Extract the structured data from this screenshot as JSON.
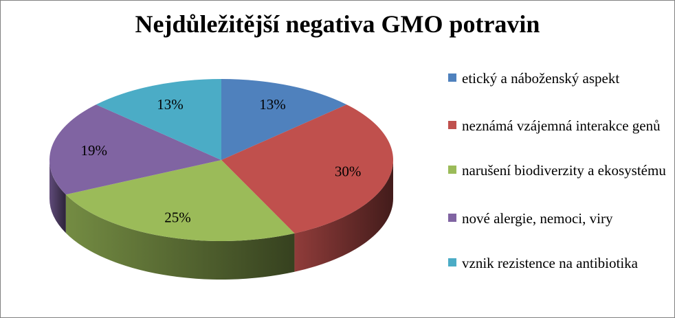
{
  "chart_data": {
    "type": "pie",
    "title": "Nejdůležitější negativa GMO potravin",
    "legend_position": "right",
    "slices": [
      {
        "label": "etický a náboženský aspekt",
        "value": 13,
        "value_label": "13%",
        "color": "#4F81BD"
      },
      {
        "label": "neznámá vzájemná interakce genů",
        "value": 30,
        "value_label": "30%",
        "color": "#C0504D"
      },
      {
        "label": "narušení biodiverzity a ekosystému",
        "value": 25,
        "value_label": "25%",
        "color": "#9BBB59"
      },
      {
        "label": "nové alergie, nemoci, viry",
        "value": 19,
        "value_label": "19%",
        "color": "#8064A2"
      },
      {
        "label": "vznik rezistence na antibiotika",
        "value": 13,
        "value_label": "13%",
        "color": "#4BACC6"
      }
    ]
  }
}
